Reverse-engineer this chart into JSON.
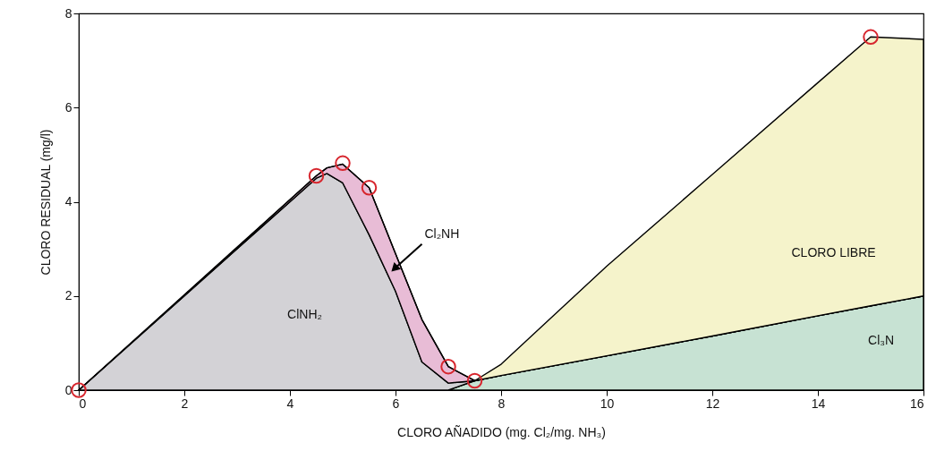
{
  "chart_data": {
    "type": "area",
    "stacked": true,
    "xlabel": "CLORO AÑADIDO (mg. Cl₂/mg. NH₃)",
    "ylabel": "CLORO RESIDUAL (mg/l)",
    "xlim": [
      0,
      16
    ],
    "ylim": [
      0,
      8
    ],
    "xticks": [
      0,
      2,
      4,
      6,
      8,
      10,
      12,
      14,
      16
    ],
    "yticks": [
      0,
      2,
      4,
      6,
      8
    ],
    "x": [
      0,
      4.5,
      4.7,
      5,
      5.5,
      6,
      6.5,
      7,
      7.5,
      8,
      10,
      12,
      14,
      15,
      16
    ],
    "series": [
      {
        "name": "Cl₃N",
        "color": "#c7e2d3",
        "values": [
          0,
          0,
          0,
          0,
          0,
          0,
          0,
          0,
          0.2,
          0.31,
          0.73,
          1.15,
          1.58,
          1.79,
          2.0
        ]
      },
      {
        "name": "ClNH₂",
        "color": "#d3d2d6",
        "values": [
          0,
          4.5,
          4.6,
          4.4,
          3.3,
          2.1,
          0.6,
          0.15,
          0,
          0,
          0,
          0,
          0,
          0,
          0
        ]
      },
      {
        "name": "Cl₂NH",
        "color": "#e8bcd6",
        "values": [
          0,
          0.05,
          0.12,
          0.4,
          1.0,
          0.8,
          0.9,
          0.35,
          0,
          0,
          0,
          0,
          0,
          0,
          0
        ]
      },
      {
        "name": "CLORO LIBRE",
        "color": "#f5f3cb",
        "values": [
          0,
          0,
          0,
          0,
          0,
          0,
          0,
          0,
          0,
          0.24,
          1.9,
          3.43,
          4.95,
          5.71,
          5.45
        ]
      },
      {
        "type": "scatter",
        "color": "#d7262e",
        "marker": "circle",
        "x": [
          0,
          4.5,
          5,
          5.5,
          7,
          7.5,
          15
        ],
        "values": [
          0,
          4.55,
          4.82,
          4.3,
          0.5,
          0.2,
          7.5
        ]
      }
    ]
  }
}
